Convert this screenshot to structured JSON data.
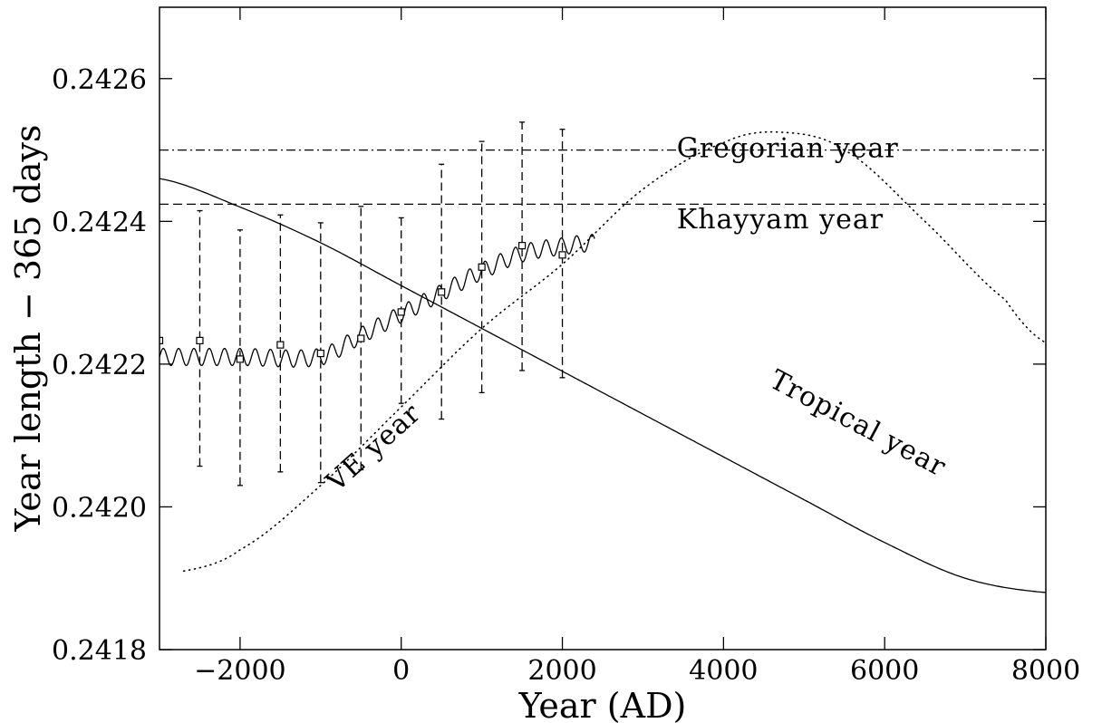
{
  "chart_data": {
    "type": "line",
    "xlabel": "Year (AD)",
    "ylabel": "Year length − 365 days",
    "xlim": [
      -3000,
      8000
    ],
    "ylim": [
      0.2418,
      0.2427
    ],
    "x_ticks": [
      -2000,
      0,
      2000,
      4000,
      6000,
      8000
    ],
    "x_tick_labels": [
      "−2000",
      "0",
      "2000",
      "4000",
      "6000",
      "8000"
    ],
    "y_ticks": [
      0.2418,
      0.242,
      0.2422,
      0.2424,
      0.2426
    ],
    "y_tick_labels": [
      "0.2418",
      "0.2420",
      "0.2422",
      "0.2424",
      "0.2426"
    ],
    "grid": false,
    "series": [
      {
        "name": "Gregorian year",
        "style": "dash-dot",
        "x": [
          -3000,
          8000
        ],
        "y": [
          0.2425,
          0.2425
        ]
      },
      {
        "name": "Khayyam year",
        "style": "dashed",
        "x": [
          -3000,
          8000
        ],
        "y": [
          0.242424,
          0.242424
        ]
      },
      {
        "name": "Tropical year",
        "style": "solid",
        "x": [
          -3000,
          -2000,
          -1000,
          0,
          1000,
          2000,
          3000,
          4000,
          5000,
          6000,
          7000,
          8000
        ],
        "y": [
          0.24246,
          0.24242,
          0.24237,
          0.24231,
          0.24225,
          0.24219,
          0.24213,
          0.24207,
          0.24201,
          0.24195,
          0.2419,
          0.24188
        ]
      },
      {
        "name": "VE year",
        "style": "dotted",
        "x": [
          -2700,
          -2000,
          -1000,
          0,
          1000,
          2000,
          3000,
          4000,
          4700,
          5500,
          6500,
          7500,
          8000
        ],
        "y": [
          0.24191,
          0.24194,
          0.24203,
          0.24214,
          0.24225,
          0.24234,
          0.242445,
          0.24251,
          0.242525,
          0.2425,
          0.2424,
          0.24229,
          0.24223
        ]
      },
      {
        "name": "",
        "style": "oscillating",
        "x": [
          -3000,
          -2000,
          -1000,
          -500,
          0,
          500,
          1000,
          1500,
          2000,
          2400
        ],
        "y": [
          0.24221,
          0.24221,
          0.24221,
          0.24224,
          0.24227,
          0.2423,
          0.24233,
          0.242355,
          0.242365,
          0.24237
        ],
        "amplitude": 1.2e-05,
        "period": 190
      }
    ],
    "measurements": {
      "style": "squares with dashed error bars",
      "x": [
        -3000,
        -2500,
        -2000,
        -1500,
        -1000,
        -500,
        0,
        500,
        1000,
        1500,
        2000
      ],
      "y": [
        0.242233,
        0.242233,
        0.242207,
        0.242227,
        0.242215,
        0.242236,
        0.242273,
        0.242301,
        0.242336,
        0.242366,
        0.242353
      ],
      "y_low": [
        null,
        0.242057,
        0.24203,
        0.242049,
        0.242034,
        0.242052,
        0.242145,
        0.242123,
        0.24216,
        0.242191,
        0.242181
      ],
      "y_high": [
        null,
        0.242415,
        0.242388,
        0.242409,
        0.242398,
        0.242421,
        0.242405,
        0.24248,
        0.242512,
        0.242539,
        0.242529
      ]
    },
    "annotations": [
      {
        "text": "Gregorian year",
        "x": 3420,
        "y": 0.24249,
        "angle": 0
      },
      {
        "text": "Khayyam year",
        "x": 3420,
        "y": 0.24239,
        "angle": 0
      },
      {
        "text": "Tropical year",
        "x": 4550,
        "y": 0.24217,
        "angle": 28
      },
      {
        "text": "VE year",
        "x": -800,
        "y": 0.24202,
        "angle": -42
      }
    ]
  }
}
